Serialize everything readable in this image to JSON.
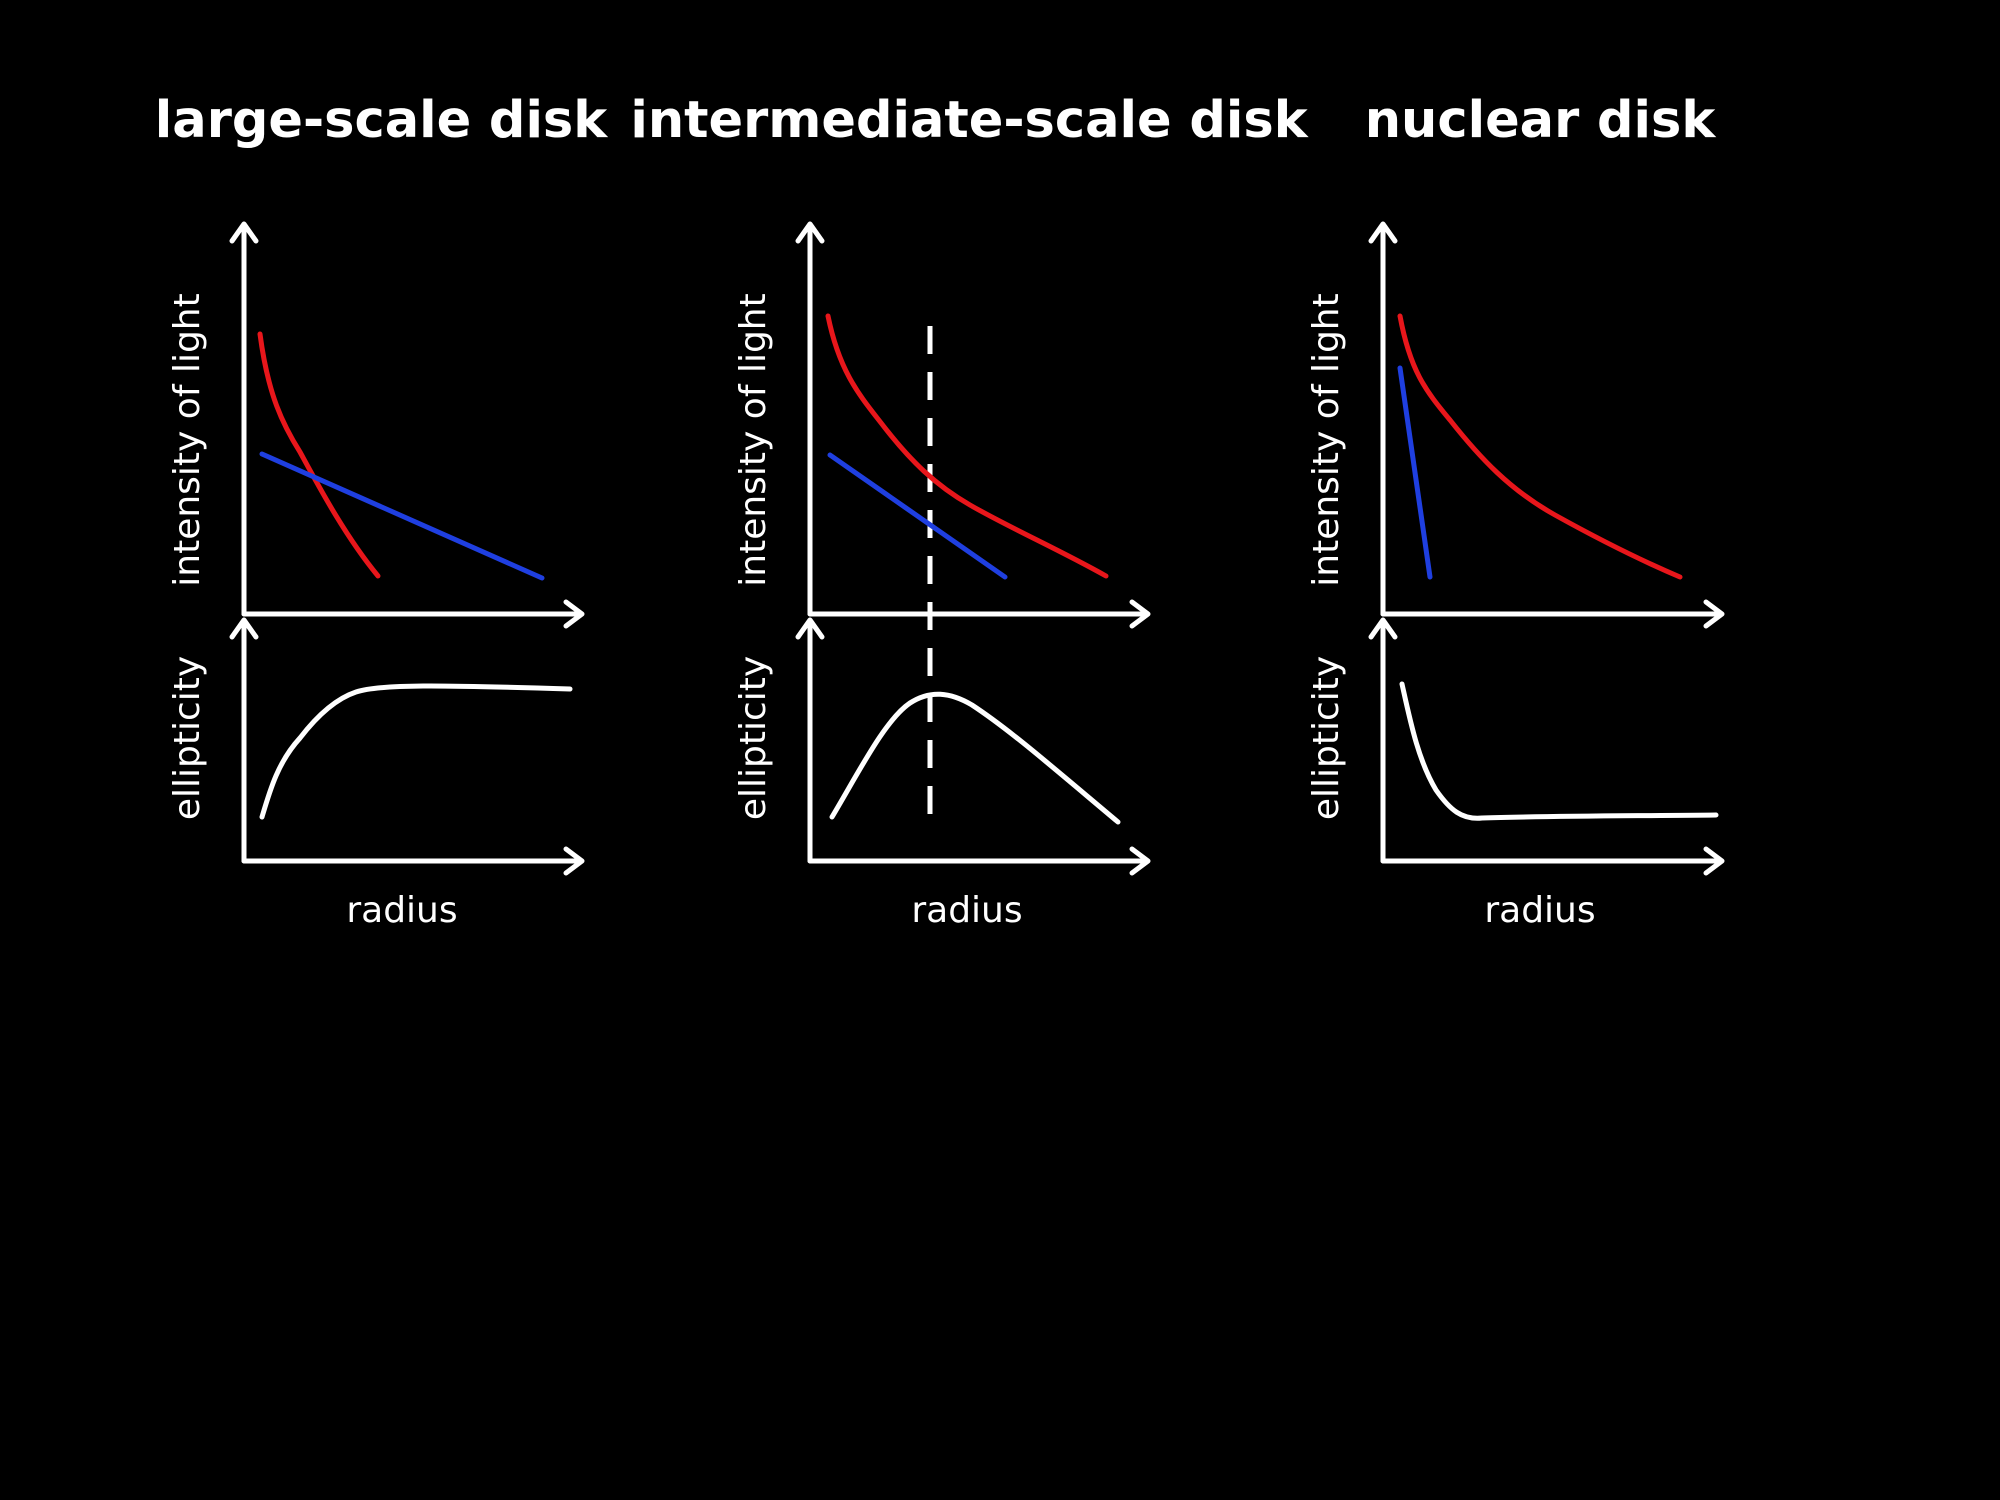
{
  "colors": {
    "background": "#000000",
    "axis": "#ffffff",
    "red_curve": "#e8161b",
    "blue_curve": "#1f3fe0",
    "ellipticity_curve": "#ffffff"
  },
  "panels": [
    {
      "title": "large-scale disk",
      "upper_ylabel": "intensity of light",
      "lower_ylabel": "ellipticity",
      "xlabel": "radius"
    },
    {
      "title": "intermediate-scale disk",
      "upper_ylabel": "intensity of light",
      "lower_ylabel": "ellipticity",
      "xlabel": "radius"
    },
    {
      "title": "nuclear disk",
      "upper_ylabel": "intensity of light",
      "lower_ylabel": "ellipticity",
      "xlabel": "radius"
    }
  ]
}
